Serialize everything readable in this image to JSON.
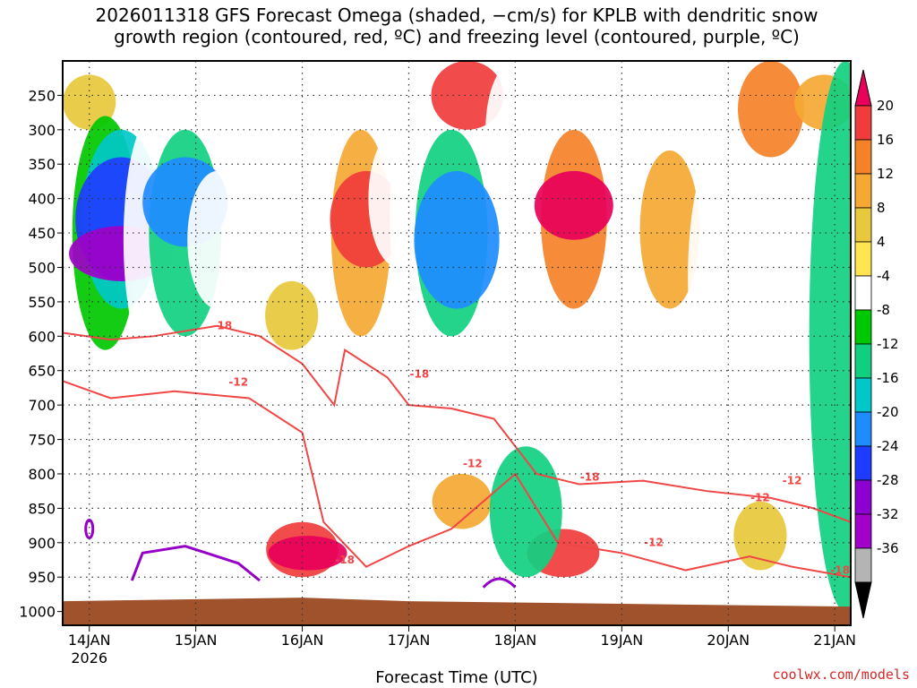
{
  "chart_data": {
    "type": "heatmap",
    "title_line1": "2026011318 GFS Forecast Omega (shaded, −cm/s) for KPLB with dendritic snow",
    "title_line2": "growth region (contoured, red, ºC) and freezing level (contoured, purple, ºC)",
    "xlabel": "Forecast Time (UTC)",
    "credit": "coolwx.com/models",
    "x_ticks": [
      "14JAN",
      "15JAN",
      "16JAN",
      "17JAN",
      "18JAN",
      "19JAN",
      "20JAN",
      "21JAN"
    ],
    "x_year": "2026",
    "x_range_days": [
      -0.25,
      7.15
    ],
    "y_ticks": [
      250,
      300,
      350,
      400,
      450,
      500,
      550,
      600,
      650,
      700,
      750,
      800,
      850,
      900,
      950,
      1000
    ],
    "y_range_hpa": [
      200,
      1020
    ],
    "colorbar_levels": [
      20,
      16,
      12,
      8,
      4,
      -4,
      -8,
      -12,
      -16,
      -20,
      -24,
      -28,
      -32,
      -36
    ],
    "colorbar_colors": [
      "#e8005a",
      "#f03c3c",
      "#f58228",
      "#f5a832",
      "#e8c83c",
      "#ffe650",
      "#ffffff",
      "#00c800",
      "#10d080",
      "#00c8c8",
      "#1e8cff",
      "#1e3cff",
      "#8c00d2",
      "#a000c8",
      "#b4b4b4",
      "#000000"
    ],
    "ground_color": "#a0522d",
    "contour_labels_red": [
      "-18",
      "-12",
      "-18",
      "-12",
      "-18",
      "-12",
      "-18",
      "-12",
      "-18",
      "-12"
    ],
    "cells": [
      {
        "t": 0.0,
        "p1": 220,
        "p2": 300,
        "v": 4
      },
      {
        "t": -0.1,
        "p1": 300,
        "p2": 560,
        "v": -8
      },
      {
        "t": 0.15,
        "p1": 280,
        "p2": 620,
        "v": -12
      },
      {
        "t": 0.3,
        "p1": 300,
        "p2": 560,
        "v": -20
      },
      {
        "t": 0.3,
        "p1": 340,
        "p2": 520,
        "v": -28
      },
      {
        "t": 0.3,
        "p1": 440,
        "p2": 520,
        "v": -36
      },
      {
        "t": 0.6,
        "p1": 280,
        "p2": 640,
        "v": -8
      },
      {
        "t": 0.9,
        "p1": 300,
        "p2": 600,
        "v": -16
      },
      {
        "t": 0.9,
        "p1": 340,
        "p2": 470,
        "v": -24
      },
      {
        "t": 1.2,
        "p1": 360,
        "p2": 560,
        "v": -8
      },
      {
        "t": 1.9,
        "p1": 420,
        "p2": 700,
        "v": -8
      },
      {
        "t": 1.9,
        "p1": 520,
        "p2": 620,
        "v": 4
      },
      {
        "t": 2.55,
        "p1": 300,
        "p2": 600,
        "v": 8
      },
      {
        "t": 2.6,
        "p1": 360,
        "p2": 500,
        "v": 16
      },
      {
        "t": 2.9,
        "p1": 300,
        "p2": 500,
        "v": -8
      },
      {
        "t": 3.1,
        "p1": 220,
        "p2": 620,
        "v": -8
      },
      {
        "t": 3.4,
        "p1": 300,
        "p2": 600,
        "v": -16
      },
      {
        "t": 3.45,
        "p1": 360,
        "p2": 560,
        "v": -24
      },
      {
        "t": 3.55,
        "p1": 200,
        "p2": 300,
        "v": 16
      },
      {
        "t": 4.55,
        "p1": 300,
        "p2": 560,
        "v": 12
      },
      {
        "t": 4.55,
        "p1": 360,
        "p2": 460,
        "v": 20
      },
      {
        "t": 4.0,
        "p1": 200,
        "p2": 400,
        "v": -8
      },
      {
        "t": 5.45,
        "p1": 330,
        "p2": 560,
        "v": 8
      },
      {
        "t": 5.9,
        "p1": 330,
        "p2": 700,
        "v": -8
      },
      {
        "t": 6.4,
        "p1": 200,
        "p2": 340,
        "v": 12
      },
      {
        "t": 6.9,
        "p1": 220,
        "p2": 300,
        "v": 8
      },
      {
        "t": 2.0,
        "p1": 870,
        "p2": 950,
        "v": 16
      },
      {
        "t": 2.05,
        "p1": 890,
        "p2": 940,
        "v": 20
      },
      {
        "t": 4.45,
        "p1": 880,
        "p2": 950,
        "v": 16
      },
      {
        "t": 3.5,
        "p1": 800,
        "p2": 880,
        "v": 8
      },
      {
        "t": 4.1,
        "p1": 760,
        "p2": 950,
        "v": -16
      },
      {
        "t": 6.3,
        "p1": 840,
        "p2": 940,
        "v": 4
      },
      {
        "t": 7.1,
        "p1": 200,
        "p2": 1000,
        "v": -16
      }
    ]
  }
}
